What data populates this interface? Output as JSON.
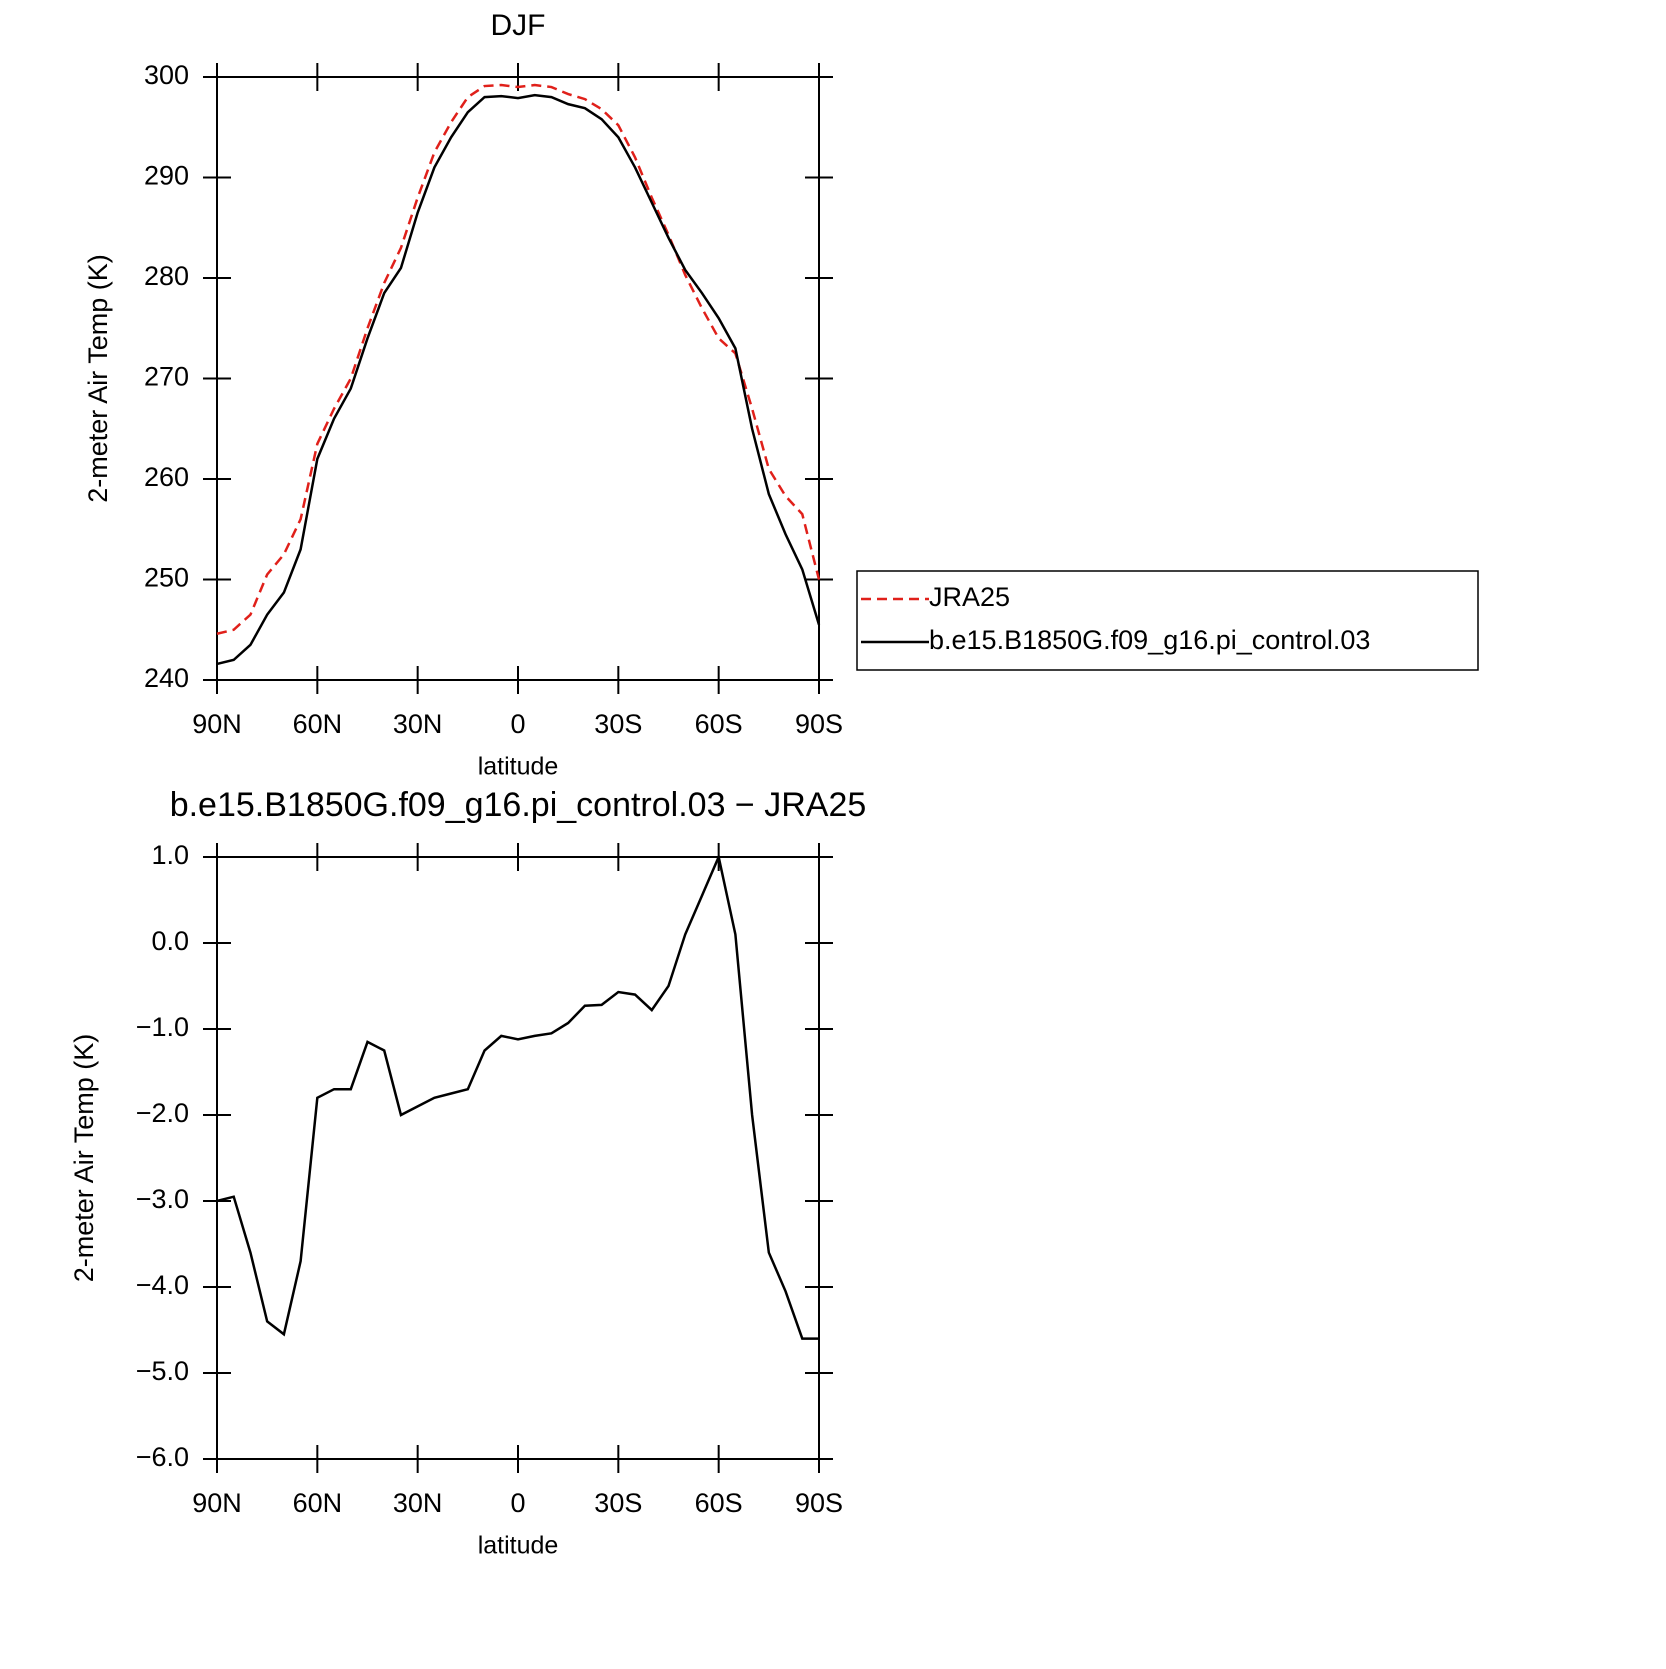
{
  "chart_data": [
    {
      "type": "line",
      "title": "DJF",
      "y_label": "2-meter Air Temp (K)",
      "x_label": "latitude",
      "x": [
        90,
        85,
        80,
        75,
        70,
        65,
        60,
        55,
        50,
        45,
        40,
        35,
        30,
        25,
        20,
        15,
        10,
        5,
        0,
        -5,
        -10,
        -15,
        -20,
        -25,
        -30,
        -35,
        -40,
        -45,
        -50,
        -55,
        -60,
        -65,
        -70,
        -75,
        -80,
        -85,
        -90
      ],
      "series": [
        {
          "name": "JRA25",
          "color": "#e0201a",
          "line_style": "dashed",
          "values": [
            244.6,
            245,
            246.5,
            250.5,
            252.5,
            256,
            263.5,
            267,
            270,
            275,
            279.5,
            283,
            288,
            292.5,
            295.5,
            298,
            299.1,
            299.2,
            299,
            299.2,
            299,
            298.3,
            297.8,
            296.8,
            295.2,
            292,
            288,
            284.3,
            280.3,
            277,
            274,
            272.5,
            267,
            261,
            258.3,
            256.5,
            250
          ]
        },
        {
          "name": "b.e15.B1850G.f09_g16.pi_control.03",
          "color": "#000000",
          "line_style": "solid",
          "values": [
            241.6,
            242,
            243.5,
            246.5,
            248.7,
            253,
            262,
            266,
            269,
            274,
            278.5,
            281,
            286.5,
            291,
            294,
            296.5,
            298,
            298.1,
            297.9,
            298.2,
            298,
            297.3,
            296.9,
            295.8,
            294,
            291,
            287.5,
            284,
            280.8,
            278.5,
            276,
            273,
            265,
            258.5,
            254.5,
            251,
            245.5
          ]
        }
      ],
      "xlim": [
        90,
        -90
      ],
      "xticks": [
        {
          "value": 90,
          "label": "90N"
        },
        {
          "value": 60,
          "label": "60N"
        },
        {
          "value": 30,
          "label": "30N"
        },
        0,
        {
          "value": -30,
          "label": "30S"
        },
        {
          "value": -60,
          "label": "60S"
        },
        {
          "value": -90,
          "label": "90S"
        }
      ],
      "ylim": [
        240,
        300
      ],
      "yticks": [
        240,
        250,
        260,
        270,
        280,
        290,
        300
      ],
      "legend": "right"
    },
    {
      "type": "line",
      "title": "b.e15.B1850G.f09_g16.pi_control.03 − JRA25",
      "y_label": "2-meter Air Temp (K)",
      "x_label": "latitude",
      "x": [
        90,
        85,
        80,
        75,
        70,
        65,
        60,
        55,
        50,
        45,
        40,
        35,
        30,
        25,
        20,
        15,
        10,
        5,
        0,
        -5,
        -10,
        -15,
        -20,
        -25,
        -30,
        -35,
        -40,
        -45,
        -50,
        -55,
        -60,
        -65,
        -70,
        -75,
        -80,
        -85,
        -90
      ],
      "series": [
        {
          "color": "#000000",
          "line_style": "solid",
          "values": [
            -3.0,
            -2.95,
            -3.6,
            -4.4,
            -4.55,
            -3.7,
            -1.8,
            -1.7,
            -1.7,
            -1.15,
            -1.25,
            -2.0,
            -1.9,
            -1.8,
            -1.75,
            -1.7,
            -1.25,
            -1.08,
            -1.12,
            -1.08,
            -1.05,
            -0.93,
            -0.73,
            -0.72,
            -0.57,
            -0.6,
            -0.78,
            -0.5,
            0.1,
            0.55,
            1.0,
            0.1,
            -2.0,
            -3.6,
            -4.05,
            -4.6,
            -4.6
          ]
        }
      ],
      "xlim": [
        90,
        -90
      ],
      "xticks": [
        {
          "value": 90,
          "label": "90N"
        },
        {
          "value": 60,
          "label": "60N"
        },
        {
          "value": 30,
          "label": "30N"
        },
        0,
        {
          "value": -30,
          "label": "30S"
        },
        {
          "value": -60,
          "label": "60S"
        },
        {
          "value": -90,
          "label": "90S"
        }
      ],
      "ylim": [
        -6,
        1
      ],
      "yticks": [
        {
          "value": -6,
          "label": "−6.0"
        },
        {
          "value": -5,
          "label": "−5.0"
        },
        {
          "value": -4,
          "label": "−4.0"
        },
        {
          "value": -3,
          "label": "−3.0"
        },
        {
          "value": -2,
          "label": "−2.0"
        },
        {
          "value": -1,
          "label": "−1.0"
        },
        {
          "value": 0,
          "label": "0.0"
        },
        {
          "value": 1,
          "label": "1.0"
        }
      ]
    }
  ]
}
